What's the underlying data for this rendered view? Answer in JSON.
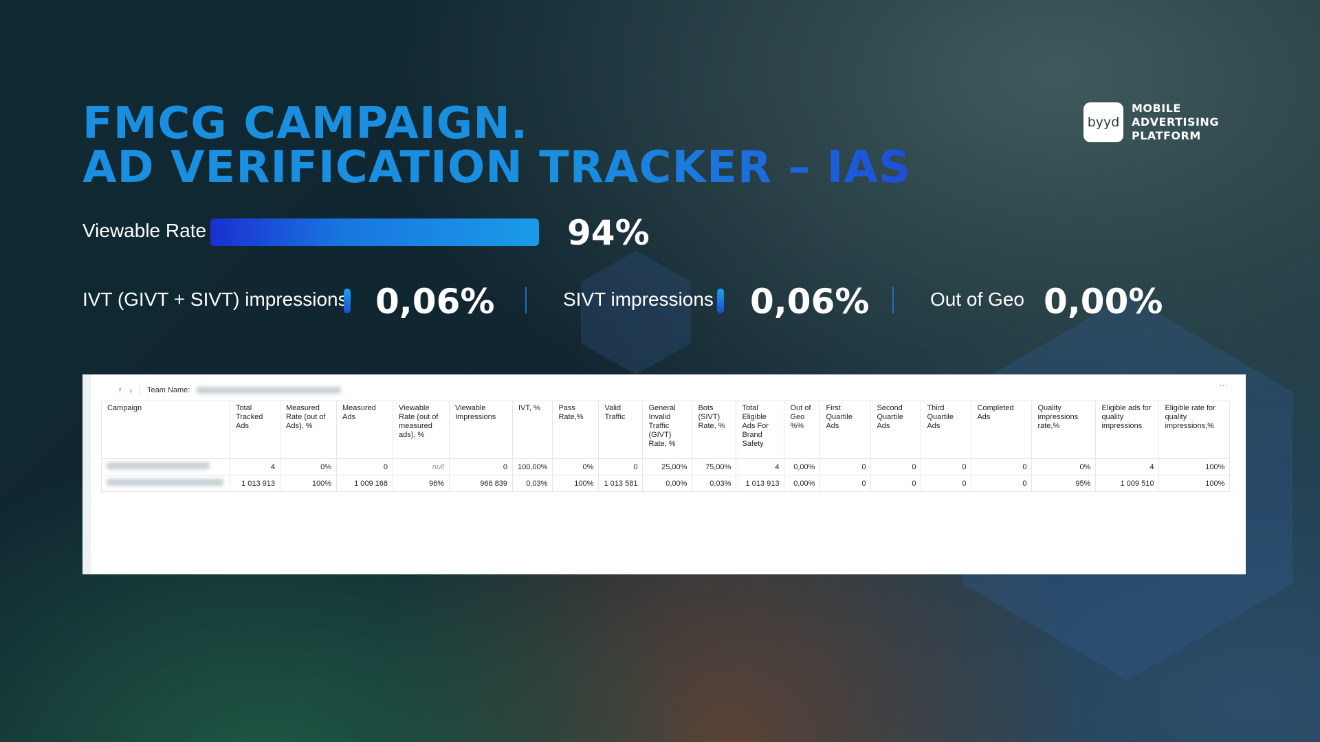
{
  "title": {
    "line1": "FMCG CAMPAIGN.",
    "line2": "AD VERIFICATION TRACKER – IAS"
  },
  "logo": {
    "mark": "byyd",
    "line1": "MOBILE",
    "line2": "ADVERTISING",
    "line3": "PLATFORM"
  },
  "viewable": {
    "label": "Viewable Rate",
    "value": "94%",
    "fill_percent": 94
  },
  "metrics": [
    {
      "label": "IVT (GIVT + SIVT) impressions",
      "value": "0,06%"
    },
    {
      "label": "SIVT impressions",
      "value": "0,06%"
    },
    {
      "label": "Out of Geo",
      "value": "0,00%"
    }
  ],
  "table": {
    "toolbar": {
      "up": "↑",
      "down": "↓",
      "team_label": "Team Name:",
      "more": "···"
    },
    "headers": [
      "Campaign",
      "Total Tracked Ads",
      "Measured Rate (out of Ads), %",
      "Measured Ads",
      "Viewable Rate (out of measured ads), %",
      "Viewable Impressions",
      "IVT, %",
      "Pass Rate,%",
      "Valid Traffic",
      "General Invalid Traffic (GIVT) Rate, %",
      "Bots (SIVT) Rate, %",
      "Total Eligible Ads For Brand Safety",
      "Out of Geo %%",
      "First Quartile Ads",
      "Second Quartile Ads",
      "Third Quartile Ads",
      "Completed Ads",
      "Quality impressions rate,%",
      "Eligible ads for quality impressions",
      "Eligible rate for quality impressions,%"
    ],
    "rows": [
      [
        "",
        "4",
        "0%",
        "0",
        "null",
        "0",
        "100,00%",
        "0%",
        "0",
        "25,00%",
        "75,00%",
        "4",
        "0,00%",
        "0",
        "0",
        "0",
        "0",
        "0%",
        "4",
        "100%"
      ],
      [
        "",
        "1 013 913",
        "100%",
        "1 009 168",
        "96%",
        "966 839",
        "0,03%",
        "100%",
        "1 013 581",
        "0,00%",
        "0,03%",
        "1 013 913",
        "0,00%",
        "0",
        "0",
        "0",
        "0",
        "95%",
        "1 009 510",
        "100%"
      ]
    ]
  }
}
